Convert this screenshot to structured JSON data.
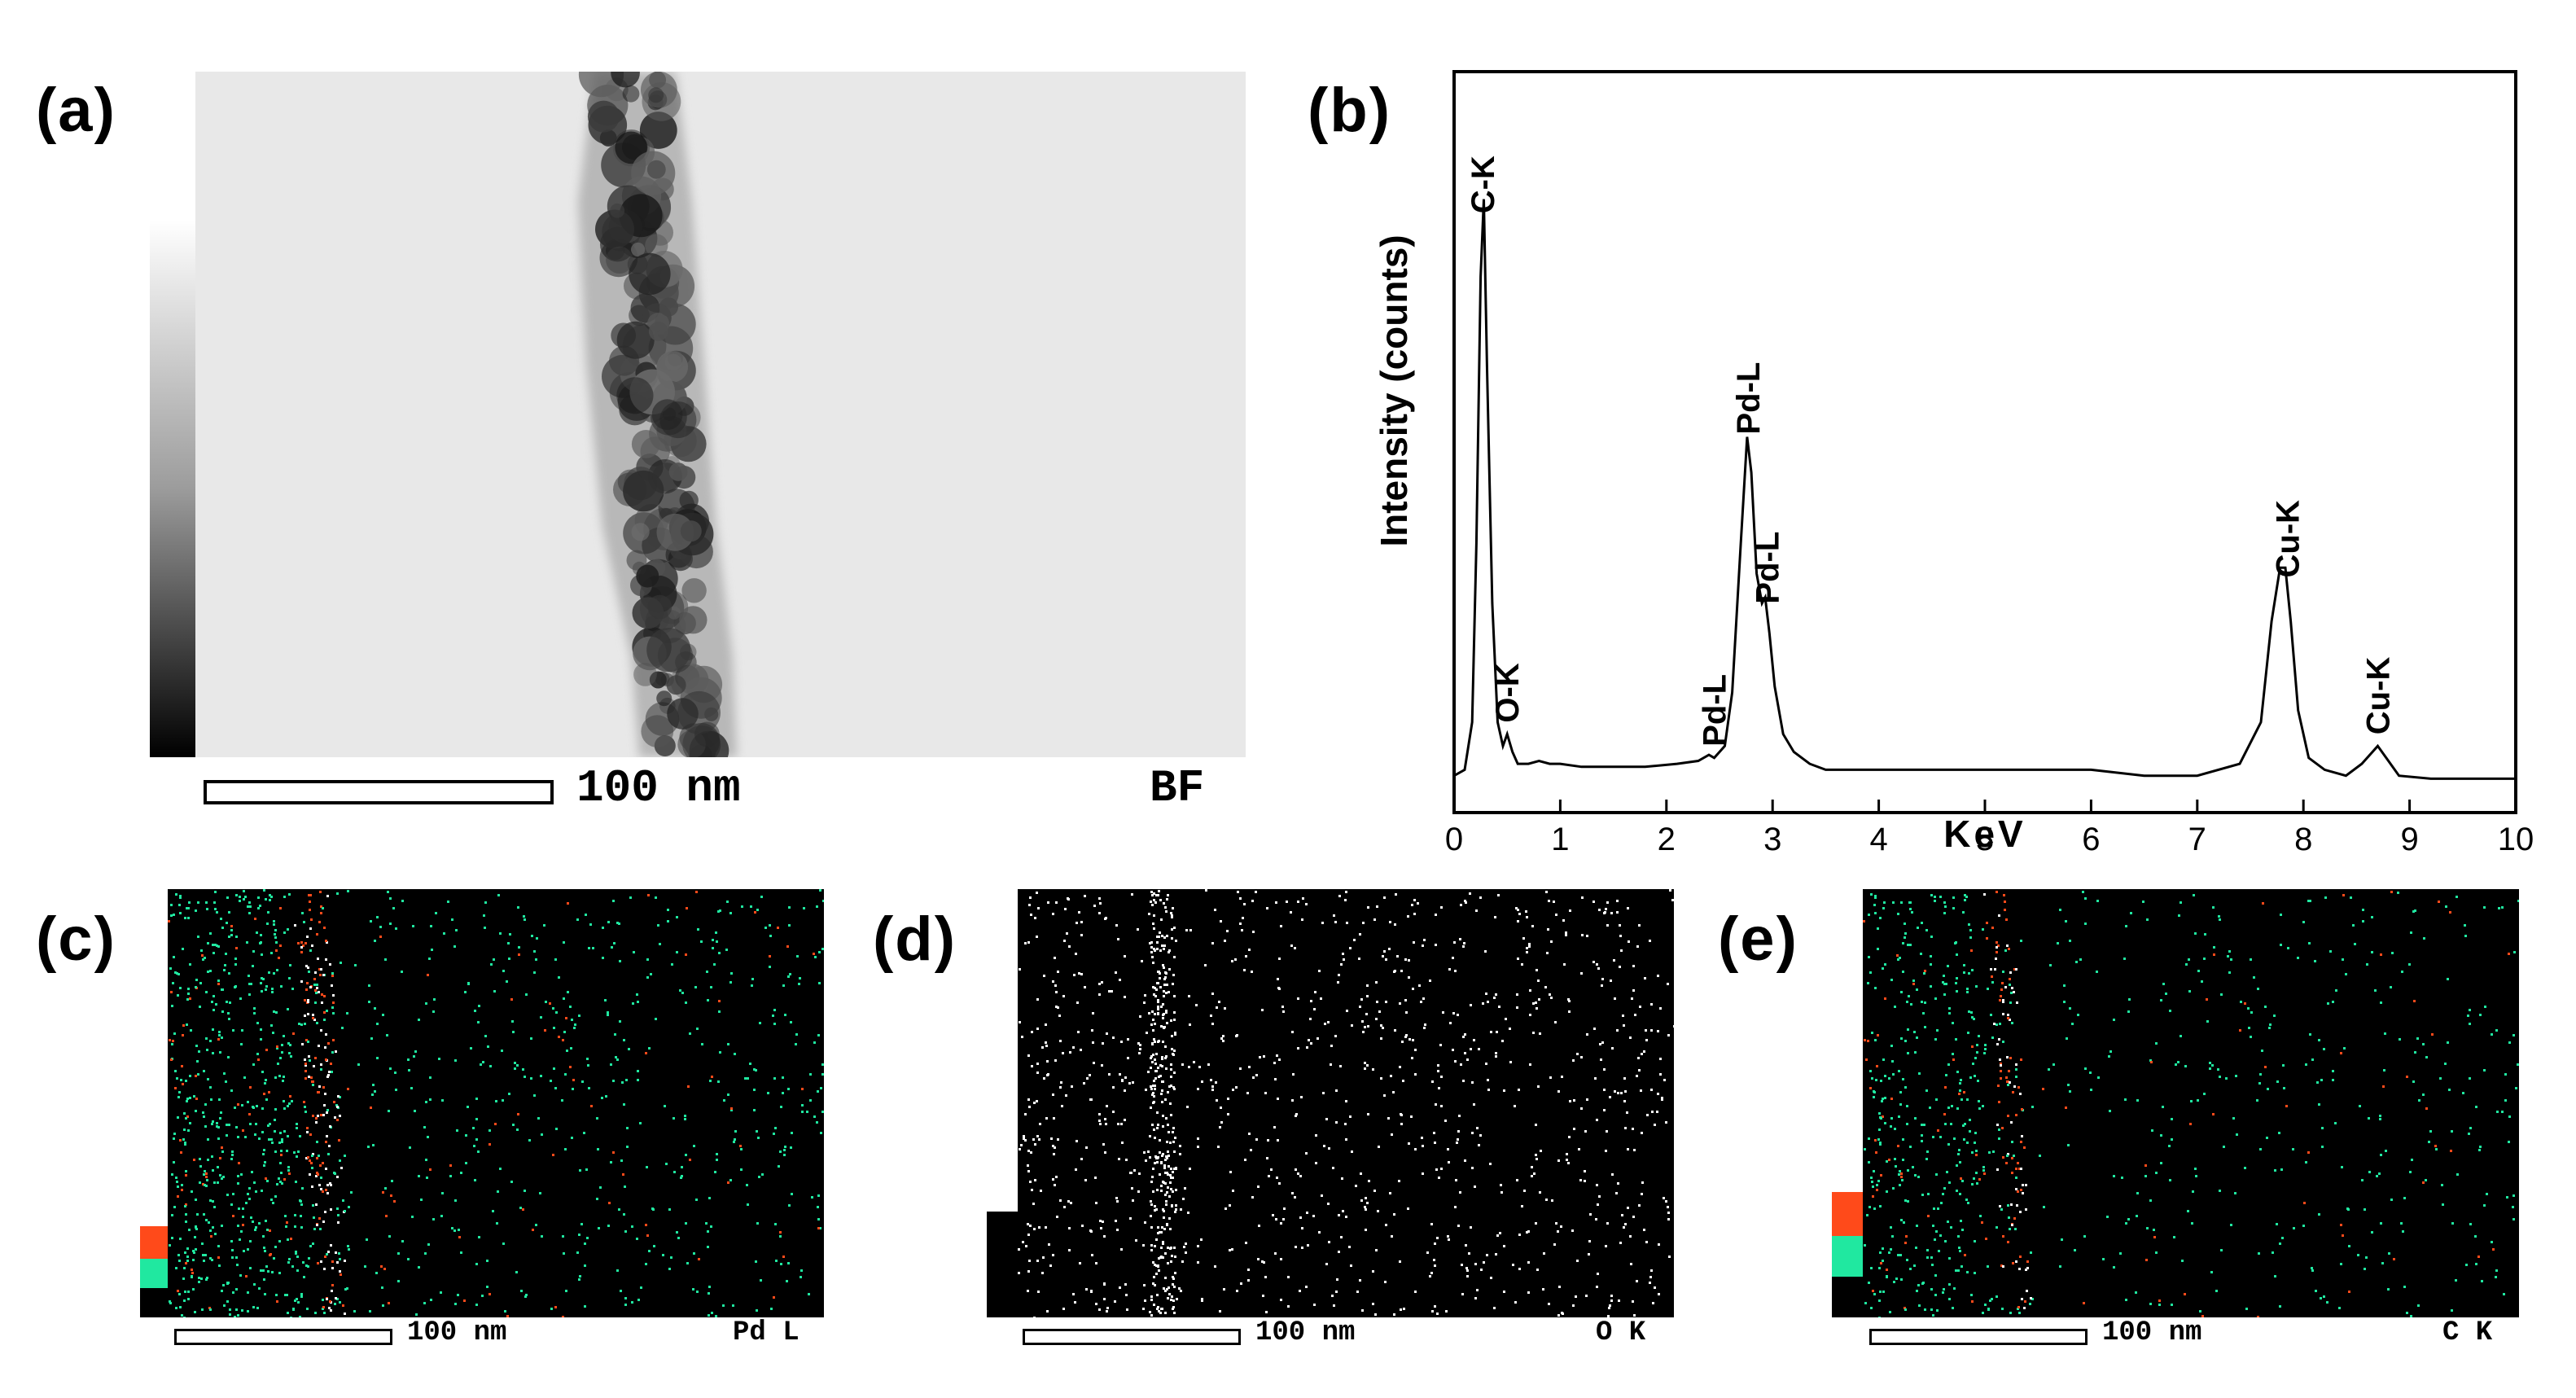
{
  "panels": {
    "a": {
      "label": "(a)",
      "scalebar_text": "100 nm",
      "mode_text": "BF"
    },
    "c": {
      "label": "(c)",
      "scalebar_text": "100 nm",
      "element_text": "Pd L"
    },
    "d": {
      "label": "(d)",
      "scalebar_text": "100 nm",
      "element_text": "O K"
    },
    "e": {
      "label": "(e)",
      "scalebar_text": "100 nm",
      "element_text": "C K"
    }
  },
  "colors": {
    "map_green": "#20e8a0",
    "map_red": "#ff4a1a",
    "map_white": "#ffffff",
    "map_bg": "#000000",
    "bf_bg": "#e8e8e8"
  },
  "chart_data": {
    "type": "line",
    "panel_label": "(b)",
    "xlabel": "KeV",
    "ylabel": "Intensity (counts)",
    "xlim": [
      0,
      10
    ],
    "ylim": [
      0,
      1
    ],
    "xticks": [
      0,
      1,
      2,
      3,
      4,
      5,
      6,
      7,
      8,
      9,
      10
    ],
    "grid": false,
    "series": [
      {
        "x": [
          0,
          0.1,
          0.17,
          0.21,
          0.25,
          0.28,
          0.31,
          0.36,
          0.41,
          0.46,
          0.5,
          0.55,
          0.6,
          0.7,
          0.8,
          0.9,
          1.0,
          1.2,
          1.5,
          1.8,
          2.1,
          2.3,
          2.4,
          2.45,
          2.55,
          2.62,
          2.7,
          2.76,
          2.8,
          2.85,
          2.9,
          2.93,
          2.97,
          3.02,
          3.1,
          3.2,
          3.35,
          3.5,
          4.0,
          5.0,
          6.0,
          6.5,
          7.0,
          7.4,
          7.6,
          7.7,
          7.78,
          7.83,
          7.88,
          7.95,
          8.05,
          8.2,
          8.4,
          8.55,
          8.65,
          8.7,
          8.78,
          8.9,
          9.2,
          10.0
        ],
        "y": [
          0.01,
          0.02,
          0.1,
          0.4,
          0.85,
          0.98,
          0.7,
          0.3,
          0.1,
          0.06,
          0.08,
          0.05,
          0.03,
          0.03,
          0.035,
          0.03,
          0.03,
          0.025,
          0.025,
          0.025,
          0.03,
          0.035,
          0.045,
          0.04,
          0.06,
          0.15,
          0.4,
          0.58,
          0.52,
          0.35,
          0.3,
          0.31,
          0.25,
          0.16,
          0.08,
          0.05,
          0.03,
          0.02,
          0.02,
          0.02,
          0.02,
          0.01,
          0.01,
          0.03,
          0.1,
          0.27,
          0.36,
          0.36,
          0.27,
          0.12,
          0.04,
          0.02,
          0.01,
          0.03,
          0.05,
          0.06,
          0.04,
          0.01,
          0.005,
          0.005
        ]
      }
    ],
    "annotations": [
      {
        "text": "C-K",
        "x": 0.27
      },
      {
        "text": "O-K",
        "x": 0.5
      },
      {
        "text": "Pd-L",
        "x": 2.45
      },
      {
        "text": "Pd-L",
        "x": 2.77
      },
      {
        "text": "Pd-L",
        "x": 2.95
      },
      {
        "text": "Cu-K",
        "x": 7.85
      },
      {
        "text": "Cu-K",
        "x": 8.7
      }
    ]
  }
}
